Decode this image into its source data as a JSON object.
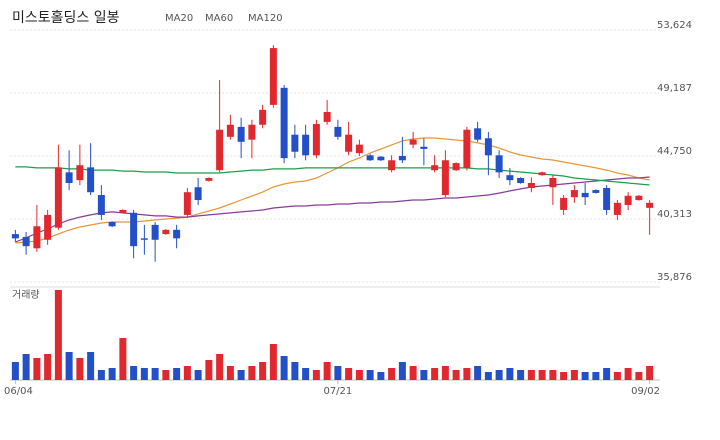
{
  "chart_data": {
    "type": "candlestick",
    "title": "미스토홀딩스 일봉",
    "volume_label": "거래량",
    "up_color": "#e0282e",
    "down_color": "#2350c8",
    "grid": true,
    "categories": [
      "06/04",
      null,
      null,
      null,
      null,
      null,
      null,
      null,
      null,
      null,
      null,
      null,
      null,
      null,
      null,
      null,
      null,
      null,
      null,
      null,
      null,
      null,
      null,
      null,
      null,
      null,
      null,
      null,
      null,
      null,
      "07/21",
      null,
      null,
      null,
      null,
      null,
      null,
      null,
      null,
      null,
      null,
      null,
      null,
      null,
      null,
      null,
      null,
      null,
      null,
      null,
      null,
      null,
      null,
      null,
      null,
      null,
      null,
      null,
      null,
      "09/02"
    ],
    "ylim": [
      35665,
      54328
    ],
    "yticks": [
      {
        "value": 53624,
        "label": "53,624"
      },
      {
        "value": 49187,
        "label": "49,187"
      },
      {
        "value": 44750,
        "label": "44,750"
      },
      {
        "value": 40313,
        "label": "40,313"
      },
      {
        "value": 35876,
        "label": "35,876"
      }
    ],
    "ohlc": [
      [
        39250,
        39550,
        38700,
        38950
      ],
      [
        39050,
        39400,
        37800,
        38400
      ],
      [
        38250,
        41300,
        38000,
        39800
      ],
      [
        38850,
        40950,
        38500,
        40600
      ],
      [
        39700,
        45550,
        39550,
        43950
      ],
      [
        43600,
        45150,
        42350,
        42850
      ],
      [
        43050,
        45550,
        42700,
        44100
      ],
      [
        43950,
        45650,
        42000,
        42200
      ],
      [
        42000,
        42700,
        40250,
        40600
      ],
      [
        40100,
        40150,
        39750,
        39800
      ],
      [
        40750,
        41000,
        40700,
        40950
      ],
      [
        40750,
        40950,
        37550,
        38400
      ],
      [
        38950,
        39900,
        37800,
        38850
      ],
      [
        39900,
        40100,
        37300,
        38850
      ],
      [
        39250,
        39600,
        39200,
        39550
      ],
      [
        39550,
        39900,
        38250,
        38950
      ],
      [
        40600,
        42500,
        40400,
        42200
      ],
      [
        42550,
        43200,
        41300,
        41650
      ],
      [
        43000,
        43250,
        42950,
        43200
      ],
      [
        43750,
        50100,
        43600,
        46600
      ],
      [
        46100,
        47650,
        45900,
        46950
      ],
      [
        46800,
        47450,
        44600,
        45750
      ],
      [
        45900,
        47300,
        44600,
        46950
      ],
      [
        46950,
        48350,
        46700,
        48000
      ],
      [
        48350,
        52550,
        48150,
        52350
      ],
      [
        49550,
        49750,
        44250,
        44600
      ],
      [
        46250,
        46950,
        44600,
        45050
      ],
      [
        46250,
        46950,
        44450,
        44800
      ],
      [
        44800,
        47300,
        44600,
        47000
      ],
      [
        47150,
        48700,
        46950,
        47850
      ],
      [
        46800,
        47300,
        45900,
        46100
      ],
      [
        45050,
        47150,
        44800,
        46250
      ],
      [
        44950,
        45900,
        44750,
        45550
      ],
      [
        44800,
        44900,
        44400,
        44450
      ],
      [
        44700,
        44750,
        44400,
        44450
      ],
      [
        43750,
        44800,
        43600,
        44450
      ],
      [
        44750,
        46100,
        44250,
        44450
      ],
      [
        45550,
        46450,
        45300,
        45900
      ],
      [
        45400,
        46000,
        44100,
        45250
      ],
      [
        43750,
        44800,
        43600,
        44100
      ],
      [
        42000,
        45150,
        41850,
        44450
      ],
      [
        43750,
        44300,
        43700,
        44250
      ],
      [
        43900,
        46800,
        43750,
        46600
      ],
      [
        46700,
        47150,
        45750,
        45900
      ],
      [
        46000,
        46450,
        43400,
        44800
      ],
      [
        44800,
        45150,
        43200,
        43600
      ],
      [
        43400,
        43900,
        42700,
        43050
      ],
      [
        43200,
        43250,
        42800,
        42850
      ],
      [
        42500,
        43250,
        42200,
        42850
      ],
      [
        43400,
        43650,
        43350,
        43600
      ],
      [
        42550,
        43400,
        41300,
        43200
      ],
      [
        40950,
        42000,
        40600,
        41800
      ],
      [
        41850,
        42700,
        41450,
        42350
      ],
      [
        42150,
        42850,
        41300,
        41850
      ],
      [
        42350,
        42400,
        42100,
        42150
      ],
      [
        42500,
        42700,
        40600,
        40950
      ],
      [
        40600,
        41650,
        40250,
        41450
      ],
      [
        41300,
        42200,
        40950,
        41950
      ],
      [
        41650,
        42000,
        41600,
        41950
      ],
      [
        41100,
        41650,
        39200,
        41450
      ]
    ],
    "series": [
      {
        "name": "MA20",
        "color": "#e8963a",
        "values": [
          38620,
          38690,
          38760,
          38980,
          39260,
          39540,
          39750,
          39890,
          40030,
          40100,
          40100,
          40100,
          40170,
          40240,
          40310,
          40380,
          40450,
          40670,
          40880,
          41090,
          41370,
          41650,
          41930,
          42210,
          42570,
          42780,
          42920,
          42990,
          43200,
          43550,
          43910,
          44330,
          44610,
          44960,
          45240,
          45530,
          45810,
          45950,
          46020,
          46020,
          45950,
          45880,
          45810,
          45670,
          45530,
          45310,
          45030,
          44820,
          44680,
          44540,
          44470,
          44330,
          44190,
          44050,
          43910,
          43760,
          43550,
          43410,
          43200,
          43060
        ]
      },
      {
        "name": "MA60",
        "color": "#8a3a9c",
        "values": [
          38690,
          38980,
          39330,
          39610,
          39960,
          40240,
          40450,
          40600,
          40740,
          40810,
          40740,
          40670,
          40600,
          40530,
          40530,
          40450,
          40450,
          40530,
          40600,
          40670,
          40740,
          40810,
          40880,
          40950,
          41090,
          41160,
          41230,
          41230,
          41300,
          41300,
          41370,
          41370,
          41440,
          41440,
          41510,
          41510,
          41580,
          41650,
          41650,
          41720,
          41790,
          41790,
          41860,
          41930,
          42000,
          42140,
          42290,
          42430,
          42570,
          42640,
          42710,
          42780,
          42850,
          42920,
          42990,
          43060,
          43130,
          43200,
          43200,
          43270
        ]
      },
      {
        "name": "MA120",
        "color": "#1e9e4a",
        "values": [
          43980,
          43980,
          43910,
          43910,
          43910,
          43840,
          43840,
          43760,
          43760,
          43760,
          43690,
          43690,
          43620,
          43620,
          43620,
          43550,
          43550,
          43550,
          43550,
          43550,
          43620,
          43690,
          43760,
          43760,
          43840,
          43840,
          43840,
          43910,
          43910,
          43910,
          43910,
          43910,
          43910,
          43910,
          43910,
          43910,
          43910,
          43910,
          43910,
          43910,
          43910,
          43910,
          43910,
          43840,
          43840,
          43760,
          43690,
          43620,
          43550,
          43480,
          43410,
          43340,
          43200,
          43130,
          43060,
          42990,
          42920,
          42850,
          42780,
          42710
        ]
      }
    ],
    "volume_ylim": [
      0,
      90
    ],
    "volume": [
      18,
      26,
      22,
      26,
      90,
      28,
      22,
      28,
      10,
      12,
      42,
      14,
      12,
      12,
      10,
      12,
      14,
      10,
      20,
      26,
      14,
      10,
      14,
      18,
      36,
      24,
      18,
      12,
      10,
      18,
      14,
      12,
      10,
      10,
      8,
      12,
      18,
      14,
      10,
      12,
      14,
      10,
      12,
      14,
      8,
      10,
      12,
      10,
      10,
      10,
      10,
      8,
      10,
      8,
      8,
      12,
      8,
      12,
      8,
      14
    ]
  }
}
